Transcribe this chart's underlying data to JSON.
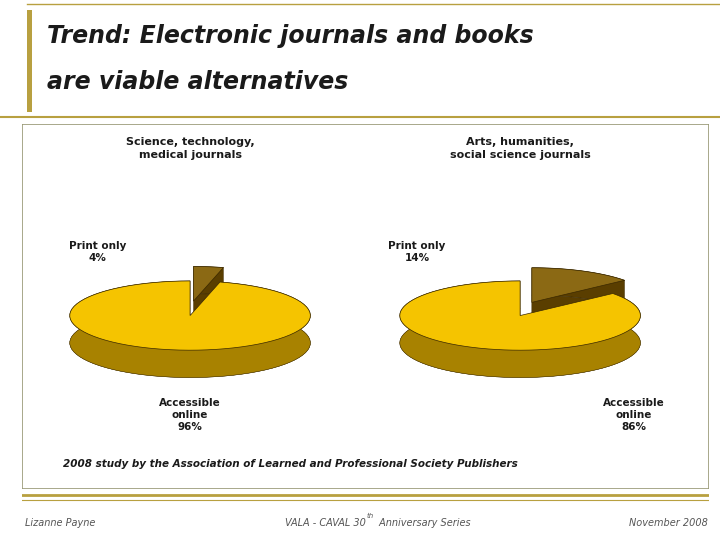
{
  "title_line1": "Trend: Electronic journals and books",
  "title_line2": "are viable alternatives",
  "title_fontsize": 17,
  "title_color": "#1a1a1a",
  "bg_color": "#ffffff",
  "panel_bg": "#d8d8d8",
  "panel_border": "#999977",
  "left_chart": {
    "title": "Science, technology,\nmedical journals",
    "slices": [
      96,
      4
    ],
    "label_accessible": "Accessible\nonline\n96%",
    "label_print": "Print only\n4%",
    "colors": [
      "#f5c400",
      "#8b6914"
    ],
    "side_colors": [
      "#a88200",
      "#5a3e00"
    ]
  },
  "right_chart": {
    "title": "Arts, humanities,\nsocial science journals",
    "slices": [
      86,
      14
    ],
    "label_accessible": "Accessible\nonline\n86%",
    "label_print": "Print only\n14%",
    "colors": [
      "#f5c400",
      "#8b6914"
    ],
    "side_colors": [
      "#a88200",
      "#5a3e00"
    ]
  },
  "footnote": "2008 study by the Association of Learned and Professional Society Publishers",
  "footer_left": "Lizanne Payne",
  "footer_center": "VALA - CAVAL 30",
  "footer_center_super": "th",
  "footer_center2": " Anniversary Series",
  "footer_right": "November 2008",
  "gold_line": "#b8a040",
  "dark_outline": "#3a2800"
}
